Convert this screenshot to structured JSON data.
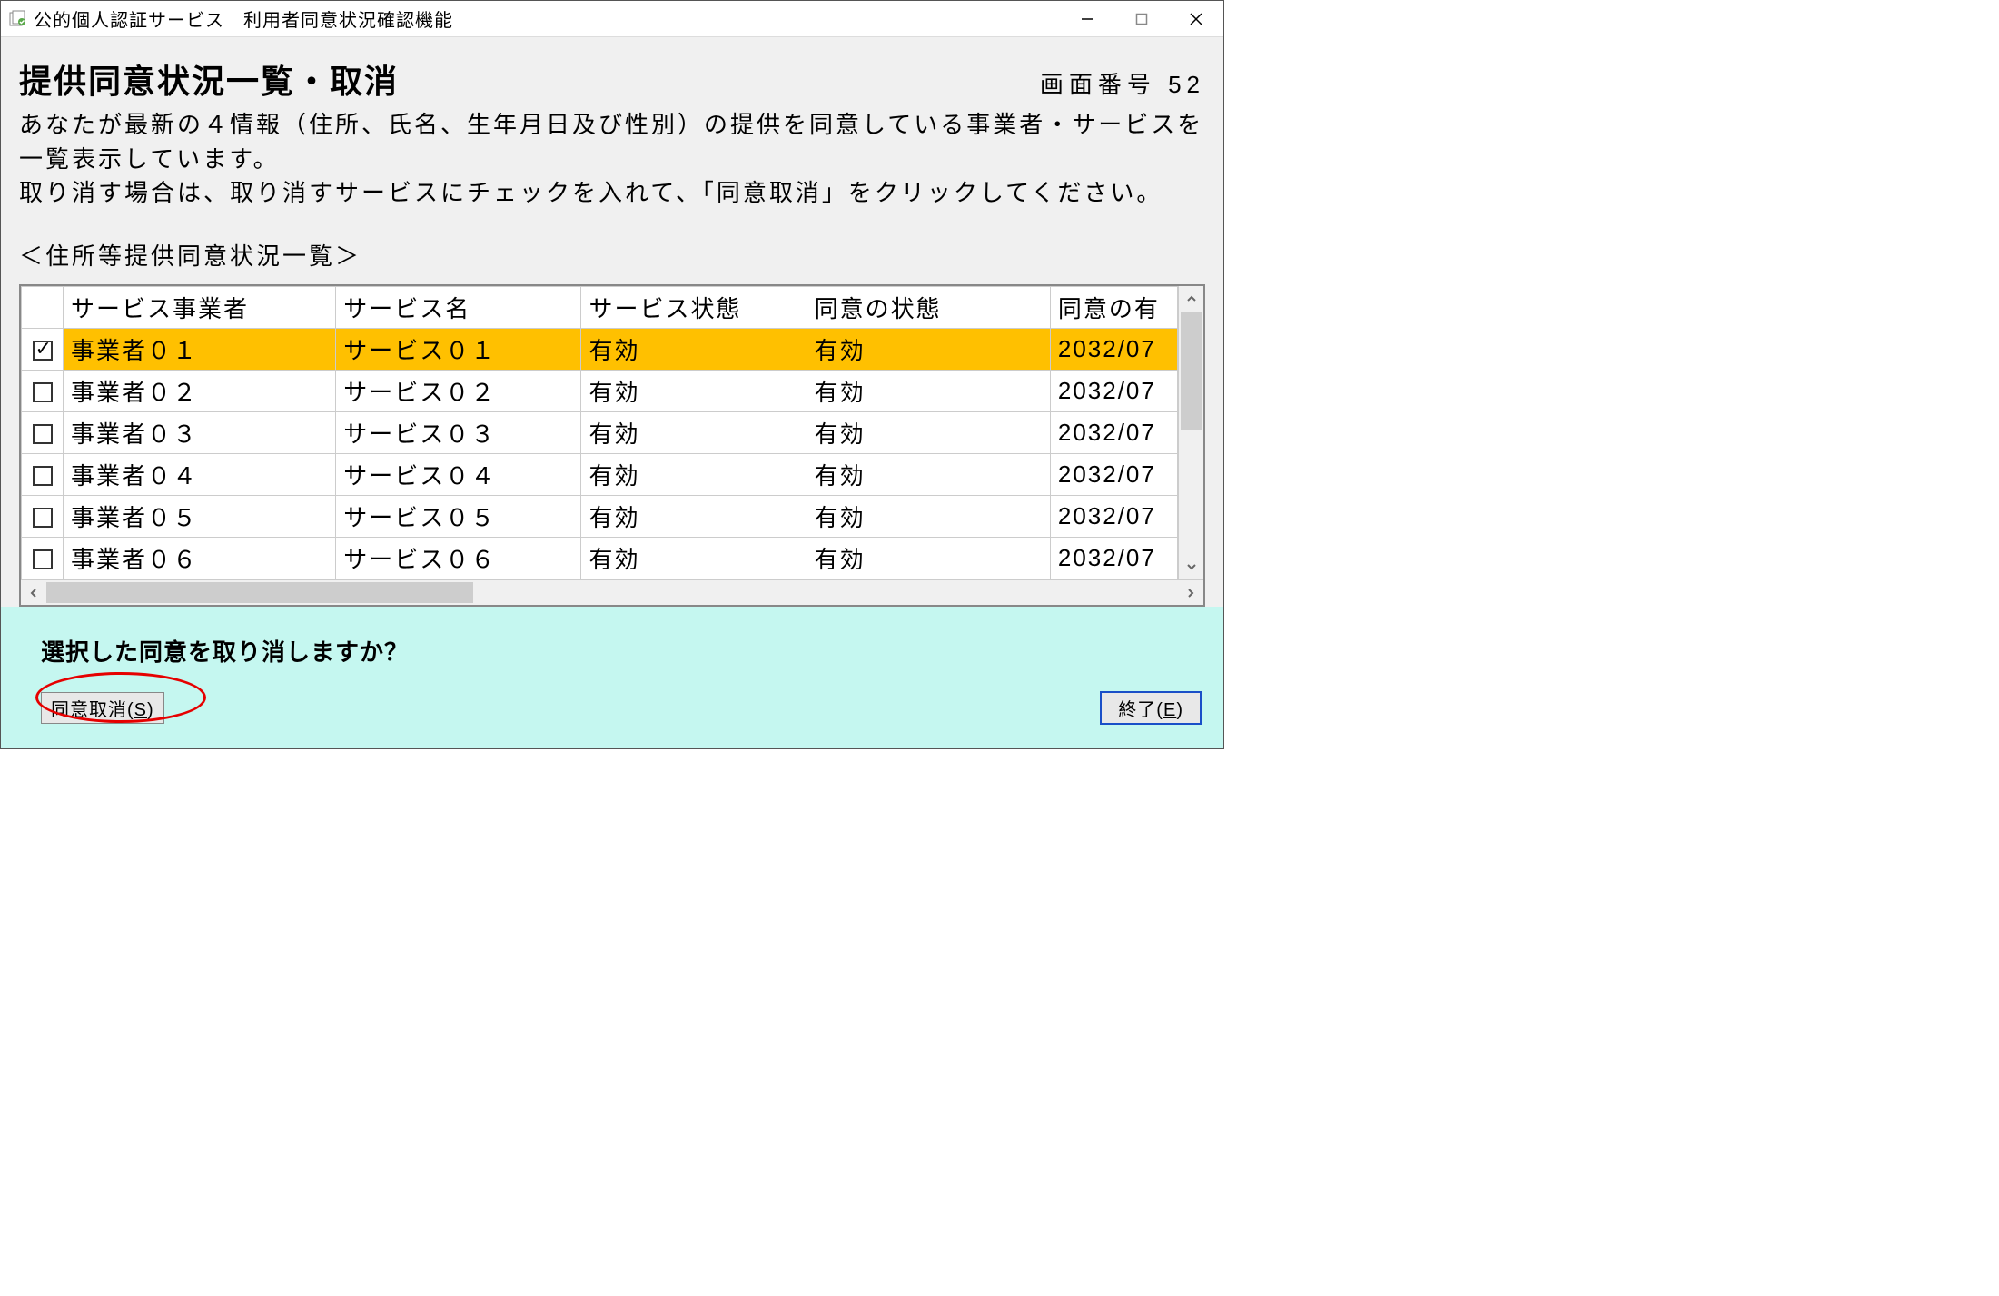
{
  "window": {
    "title": "公的個人認証サービス　利用者同意状況確認機能"
  },
  "header": {
    "heading": "提供同意状況一覧・取消",
    "screen_number_label": "画面番号",
    "screen_number": "52",
    "description_line1": "あなたが最新の４情報（住所、氏名、生年月日及び性別）の提供を同意している事業者・サービスを一覧表示しています。",
    "description_line2": "取り消す場合は、取り消すサービスにチェックを入れて、「同意取消」をクリックしてください。",
    "list_label": "＜住所等提供同意状況一覧＞"
  },
  "table": {
    "columns": {
      "provider": "サービス事業者",
      "service": "サービス名",
      "service_status": "サービス状態",
      "consent_status": "同意の状態",
      "consent_date": "同意の有"
    },
    "rows": [
      {
        "checked": true,
        "selected": true,
        "provider": "事業者０１",
        "service": "サービス０１",
        "service_status": "有効",
        "consent_status": "有効",
        "consent_date": "2032/07"
      },
      {
        "checked": false,
        "selected": false,
        "provider": "事業者０２",
        "service": "サービス０２",
        "service_status": "有効",
        "consent_status": "有効",
        "consent_date": "2032/07"
      },
      {
        "checked": false,
        "selected": false,
        "provider": "事業者０３",
        "service": "サービス０３",
        "service_status": "有効",
        "consent_status": "有効",
        "consent_date": "2032/07"
      },
      {
        "checked": false,
        "selected": false,
        "provider": "事業者０４",
        "service": "サービス０４",
        "service_status": "有効",
        "consent_status": "有効",
        "consent_date": "2032/07"
      },
      {
        "checked": false,
        "selected": false,
        "provider": "事業者０５",
        "service": "サービス０５",
        "service_status": "有効",
        "consent_status": "有効",
        "consent_date": "2032/07"
      },
      {
        "checked": false,
        "selected": false,
        "provider": "事業者０６",
        "service": "サービス０６",
        "service_status": "有効",
        "consent_status": "有効",
        "consent_date": "2032/07"
      }
    ],
    "colors": {
      "selected_row_bg": "#ffc000",
      "border": "#cccccc"
    }
  },
  "footer": {
    "question": "選択した同意を取り消しますか？",
    "cancel_consent_label": "同意取消(",
    "cancel_consent_key": "S",
    "cancel_consent_suffix": ")",
    "exit_label": "終了(",
    "exit_key": "E",
    "exit_suffix": ")",
    "highlight_color": "#e60000",
    "bg_color": "#c5f7f0"
  }
}
